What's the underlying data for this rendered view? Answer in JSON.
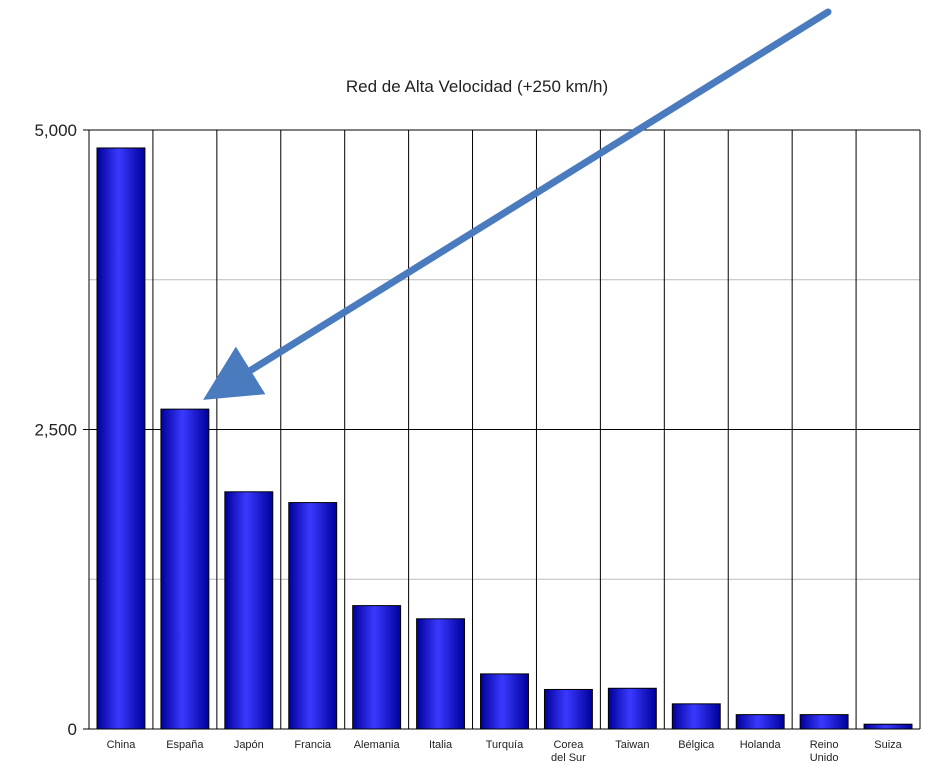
{
  "chart_data": {
    "type": "bar",
    "title": "Red de Alta Velocidad (+250 km/h)",
    "xlabel": "",
    "ylabel": "",
    "ylim": [
      0,
      5000
    ],
    "yticks": [
      0,
      2500,
      5000
    ],
    "ytick_labels": [
      "0",
      "2,500",
      "5,000"
    ],
    "minor_gridlines": [
      1250,
      3750
    ],
    "grid": true,
    "legend": "none",
    "categories": [
      [
        "China"
      ],
      [
        "España"
      ],
      [
        "Japón"
      ],
      [
        "Francia"
      ],
      [
        "Alemania"
      ],
      [
        "Italia"
      ],
      [
        "Turquía"
      ],
      [
        "Corea",
        "del Sur"
      ],
      [
        "Taiwan"
      ],
      [
        "Bélgica"
      ],
      [
        "Holanda"
      ],
      [
        "Reino",
        "Unido"
      ],
      [
        "Suiza"
      ]
    ],
    "values": [
      4850,
      2670,
      1980,
      1890,
      1030,
      920,
      460,
      330,
      340,
      210,
      120,
      120,
      40
    ],
    "annotation": {
      "type": "arrow",
      "points_to": "España"
    },
    "colors": {
      "bar": "#0a0ae0",
      "bar_dark": "#00009a",
      "bar_light": "#3a3aff",
      "arrow": "#4a7bbf",
      "grid_major": "#000000",
      "grid_minor": "#bbbbbb"
    }
  }
}
